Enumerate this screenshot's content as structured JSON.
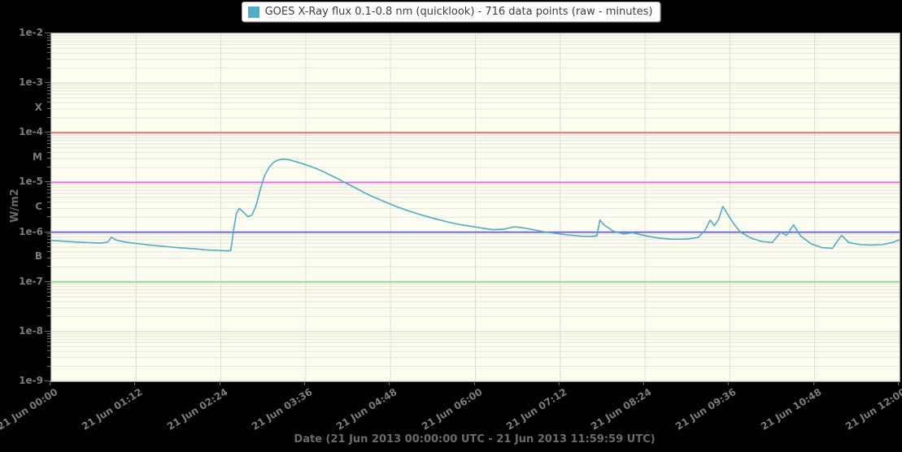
{
  "page": {
    "background": "#000000"
  },
  "legend": {
    "label": "GOES X-Ray flux 0.1-0.8 nm (quicklook) - 716 data points (raw - minutes)",
    "swatch_color": "#4fabc6"
  },
  "colors": {
    "plot_background": "#fdfdf1",
    "plot_border": "#8f8f8f",
    "grid_major": "#cfcfc7",
    "grid_minor": "#e4e4da",
    "grid_vertical": "#dcdcd4",
    "axis_text": "#7c7c7c",
    "series_line": "#4fabc6",
    "threshold_x": "#e06e6e",
    "threshold_m": "#e26ee2",
    "threshold_c": "#7168e2",
    "threshold_b": "#8fe08f"
  },
  "chart_data": {
    "type": "line",
    "title": "",
    "xlabel": "Date (21 Jun 2013 00:00:00 UTC - 21 Jun 2013 11:59:59 UTC)",
    "ylabel": "W/m2",
    "xlim_hours": [
      0,
      12
    ],
    "ylim_exp": [
      -9,
      -2
    ],
    "grid": true,
    "legend_position": "top-center",
    "x_ticks": [
      {
        "hour": 0.0,
        "label": "21 Jun 00:00"
      },
      {
        "hour": 1.2,
        "label": "21 Jun 01:12"
      },
      {
        "hour": 2.4,
        "label": "21 Jun 02:24"
      },
      {
        "hour": 3.6,
        "label": "21 Jun 03:36"
      },
      {
        "hour": 4.8,
        "label": "21 Jun 04:48"
      },
      {
        "hour": 6.0,
        "label": "21 Jun 06:00"
      },
      {
        "hour": 7.2,
        "label": "21 Jun 07:12"
      },
      {
        "hour": 8.4,
        "label": "21 Jun 08:24"
      },
      {
        "hour": 9.6,
        "label": "21 Jun 09:36"
      },
      {
        "hour": 10.8,
        "label": "21 Jun 10:48"
      },
      {
        "hour": 12.0,
        "label": "21 Jun 12:00"
      }
    ],
    "y_ticks": [
      {
        "exp": -2,
        "label": "1e-2"
      },
      {
        "exp": -3,
        "label": "1e-3"
      },
      {
        "exp": -4,
        "label": "1e-4"
      },
      {
        "exp": -5,
        "label": "1e-5"
      },
      {
        "exp": -6,
        "label": "1e-6"
      },
      {
        "exp": -7,
        "label": "1e-7"
      },
      {
        "exp": -8,
        "label": "1e-8"
      },
      {
        "exp": -9,
        "label": "1e-9"
      }
    ],
    "flare_class_labels": [
      {
        "label": "X",
        "exp": -3.5
      },
      {
        "label": "M",
        "exp": -4.5
      },
      {
        "label": "C",
        "exp": -5.5
      },
      {
        "label": "B",
        "exp": -6.5
      }
    ],
    "threshold_lines": [
      {
        "name": "X-class threshold",
        "exp": -4,
        "color": "#e06e6e"
      },
      {
        "name": "M-class threshold",
        "exp": -5,
        "color": "#e26ee2"
      },
      {
        "name": "C-class threshold",
        "exp": -6,
        "color": "#7168e2"
      },
      {
        "name": "B-class threshold",
        "exp": -7,
        "color": "#8fe08f"
      }
    ],
    "series": [
      {
        "name": "GOES X-Ray flux 0.1-0.8 nm (quicklook)",
        "color": "#4fabc6",
        "points_hour_flux": [
          [
            0.0,
            6.8e-07
          ],
          [
            0.15,
            6.6e-07
          ],
          [
            0.3,
            6.4e-07
          ],
          [
            0.5,
            6.2e-07
          ],
          [
            0.7,
            6e-07
          ],
          [
            0.8,
            6.3e-07
          ],
          [
            0.85,
            7.9e-07
          ],
          [
            0.92,
            6.9e-07
          ],
          [
            1.05,
            6.3e-07
          ],
          [
            1.25,
            5.8e-07
          ],
          [
            1.45,
            5.4e-07
          ],
          [
            1.65,
            5.1e-07
          ],
          [
            1.85,
            4.8e-07
          ],
          [
            2.05,
            4.6e-07
          ],
          [
            2.2,
            4.4e-07
          ],
          [
            2.35,
            4.3e-07
          ],
          [
            2.5,
            4.2e-07
          ],
          [
            2.54,
            4.3e-07
          ],
          [
            2.58,
            1.1e-06
          ],
          [
            2.62,
            2.4e-06
          ],
          [
            2.66,
            3e-06
          ],
          [
            2.72,
            2.5e-06
          ],
          [
            2.78,
            2.05e-06
          ],
          [
            2.84,
            2.2e-06
          ],
          [
            2.9,
            3.5e-06
          ],
          [
            2.96,
            7.5e-06
          ],
          [
            3.02,
            1.4e-05
          ],
          [
            3.08,
            2e-05
          ],
          [
            3.14,
            2.5e-05
          ],
          [
            3.2,
            2.8e-05
          ],
          [
            3.27,
            2.95e-05
          ],
          [
            3.35,
            2.9e-05
          ],
          [
            3.45,
            2.65e-05
          ],
          [
            3.55,
            2.4e-05
          ],
          [
            3.65,
            2.15e-05
          ],
          [
            3.75,
            1.9e-05
          ],
          [
            3.85,
            1.65e-05
          ],
          [
            3.95,
            1.4e-05
          ],
          [
            4.05,
            1.2e-05
          ],
          [
            4.15,
            1e-05
          ],
          [
            4.3,
            7.8e-06
          ],
          [
            4.45,
            6e-06
          ],
          [
            4.6,
            4.8e-06
          ],
          [
            4.75,
            3.9e-06
          ],
          [
            4.9,
            3.2e-06
          ],
          [
            5.05,
            2.7e-06
          ],
          [
            5.2,
            2.3e-06
          ],
          [
            5.35,
            2e-06
          ],
          [
            5.5,
            1.75e-06
          ],
          [
            5.65,
            1.55e-06
          ],
          [
            5.8,
            1.4e-06
          ],
          [
            5.95,
            1.3e-06
          ],
          [
            6.1,
            1.2e-06
          ],
          [
            6.25,
            1.12e-06
          ],
          [
            6.4,
            1.15e-06
          ],
          [
            6.55,
            1.28e-06
          ],
          [
            6.7,
            1.2e-06
          ],
          [
            6.85,
            1.1e-06
          ],
          [
            7.0,
            1e-06
          ],
          [
            7.15,
            9.4e-07
          ],
          [
            7.3,
            8.8e-07
          ],
          [
            7.5,
            8.3e-07
          ],
          [
            7.65,
            8.2e-07
          ],
          [
            7.72,
            8.5e-07
          ],
          [
            7.76,
            1.75e-06
          ],
          [
            7.82,
            1.4e-06
          ],
          [
            7.95,
            1.05e-06
          ],
          [
            8.1,
            9.2e-07
          ],
          [
            8.22,
            9.8e-07
          ],
          [
            8.3,
            9.2e-07
          ],
          [
            8.45,
            8.2e-07
          ],
          [
            8.6,
            7.6e-07
          ],
          [
            8.8,
            7.2e-07
          ],
          [
            9.0,
            7.3e-07
          ],
          [
            9.15,
            7.8e-07
          ],
          [
            9.25,
            1.1e-06
          ],
          [
            9.32,
            1.75e-06
          ],
          [
            9.38,
            1.35e-06
          ],
          [
            9.44,
            1.8e-06
          ],
          [
            9.5,
            3.3e-06
          ],
          [
            9.56,
            2.4e-06
          ],
          [
            9.65,
            1.5e-06
          ],
          [
            9.75,
            1e-06
          ],
          [
            9.9,
            7.6e-07
          ],
          [
            10.05,
            6.5e-07
          ],
          [
            10.2,
            6.2e-07
          ],
          [
            10.32,
            1e-06
          ],
          [
            10.4,
            8.6e-07
          ],
          [
            10.5,
            1.4e-06
          ],
          [
            10.6,
            8.4e-07
          ],
          [
            10.75,
            5.8e-07
          ],
          [
            10.9,
            4.9e-07
          ],
          [
            11.05,
            4.7e-07
          ],
          [
            11.18,
            8.6e-07
          ],
          [
            11.28,
            6.2e-07
          ],
          [
            11.45,
            5.6e-07
          ],
          [
            11.6,
            5.5e-07
          ],
          [
            11.75,
            5.6e-07
          ],
          [
            11.9,
            6.2e-07
          ],
          [
            12.0,
            7e-07
          ]
        ]
      }
    ]
  }
}
